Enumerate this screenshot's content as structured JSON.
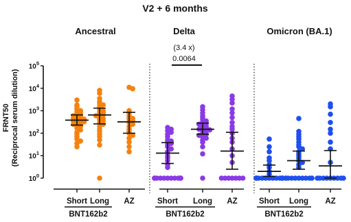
{
  "chart_data": {
    "type": "scatter",
    "title": "V2 + 6 months",
    "ylabel_lines": [
      "FRNT50",
      "(Reciprocal serum dilution)"
    ],
    "yscale": "log",
    "ylim": [
      1,
      100000
    ],
    "yticks": [
      {
        "value": 1,
        "base": "10",
        "exp": "0"
      },
      {
        "value": 10,
        "base": "10",
        "exp": "1"
      },
      {
        "value": 100,
        "base": "10",
        "exp": "2"
      },
      {
        "value": 1000,
        "base": "10",
        "exp": "3"
      },
      {
        "value": 10000,
        "base": "10",
        "exp": "4"
      },
      {
        "value": 100000,
        "base": "10",
        "exp": "5"
      }
    ],
    "group_label": "BNT162b2",
    "categories": [
      "Short",
      "Long",
      "AZ"
    ],
    "panels": [
      {
        "title": "Ancestral",
        "color": "#f5820f",
        "groups": [
          {
            "name": "Short",
            "median": 380,
            "q1": 230,
            "q3": 650,
            "values": [
              3000,
              1800,
              1500,
              1200,
              1000,
              900,
              850,
              700,
              650,
              600,
              550,
              500,
              450,
              420,
              400,
              380,
              350,
              320,
              300,
              280,
              250,
              220,
              200,
              170,
              140,
              110,
              90,
              70,
              55,
              45,
              35,
              25
            ]
          },
          {
            "name": "Long",
            "median": 650,
            "q1": 260,
            "q3": 1300,
            "values": [
              8000,
              6000,
              3500,
              2500,
              2000,
              1800,
              1500,
              1200,
              1000,
              900,
              800,
              700,
              650,
              600,
              500,
              450,
              400,
              350,
              300,
              250,
              200,
              150,
              120,
              90,
              70,
              50,
              30,
              1
            ]
          },
          {
            "name": "AZ",
            "median": 320,
            "q1": 100,
            "q3": 850,
            "values": [
              11000,
              9500,
              1000,
              800,
              600,
              500,
              450,
              400,
              350,
              300,
              250,
              200,
              150,
              120,
              100,
              80,
              60,
              40,
              25,
              15
            ]
          }
        ]
      },
      {
        "title": "Delta",
        "color": "#8a3ae6",
        "annotation": {
          "ratio": "(3.4 x)",
          "p": "0.0064"
        },
        "groups": [
          {
            "name": "Short",
            "median": 13,
            "q1": 4.5,
            "q3": 38,
            "values": [
              180,
              150,
              130,
              110,
              90,
              70,
              50,
              45,
              40,
              35,
              30,
              25,
              20,
              15,
              10,
              8,
              6,
              4,
              3,
              1,
              1,
              1,
              1,
              1,
              1,
              1,
              1,
              1,
              1,
              1,
              1,
              1,
              1,
              1
            ]
          },
          {
            "name": "Long",
            "median": 150,
            "q1": 90,
            "q3": 280,
            "values": [
              1500,
              1100,
              800,
              600,
              500,
              400,
              350,
              300,
              270,
              250,
              230,
              200,
              180,
              160,
              150,
              140,
              130,
              120,
              100,
              90,
              80,
              70,
              60,
              50,
              40,
              25,
              12,
              1
            ]
          },
          {
            "name": "AZ",
            "median": 16,
            "q1": 2.5,
            "q3": 110,
            "values": [
              4500,
              3200,
              2200,
              1200,
              800,
              500,
              300,
              200,
              150,
              100,
              60,
              40,
              20,
              10,
              5,
              1,
              1,
              1,
              1,
              1,
              1,
              1
            ]
          }
        ]
      },
      {
        "title": "Omicron (BA.1)",
        "color": "#1f4ff0",
        "groups": [
          {
            "name": "Short",
            "median": 2,
            "q1": 1.2,
            "q3": 3.8,
            "values": [
              55,
              25,
              15,
              8,
              6,
              4,
              3,
              2,
              1.5,
              1,
              1,
              1,
              1,
              1,
              1,
              1,
              1,
              1,
              1,
              1,
              1,
              1,
              1,
              1,
              1,
              1,
              1
            ]
          },
          {
            "name": "Long",
            "median": 6,
            "q1": 2.5,
            "q3": 16,
            "values": [
              450,
              120,
              90,
              70,
              55,
              40,
              30,
              25,
              20,
              15,
              12,
              10,
              8,
              6,
              5,
              4,
              3,
              1,
              1,
              1,
              1,
              1,
              1,
              1,
              1,
              1,
              1,
              1
            ]
          },
          {
            "name": "AZ",
            "median": 3.5,
            "q1": 1,
            "q3": 17,
            "values": [
              2000,
              1500,
              700,
              300,
              150,
              100,
              40,
              20,
              5,
              1,
              1,
              1,
              1,
              1,
              1,
              1,
              1,
              1
            ]
          }
        ]
      }
    ]
  }
}
